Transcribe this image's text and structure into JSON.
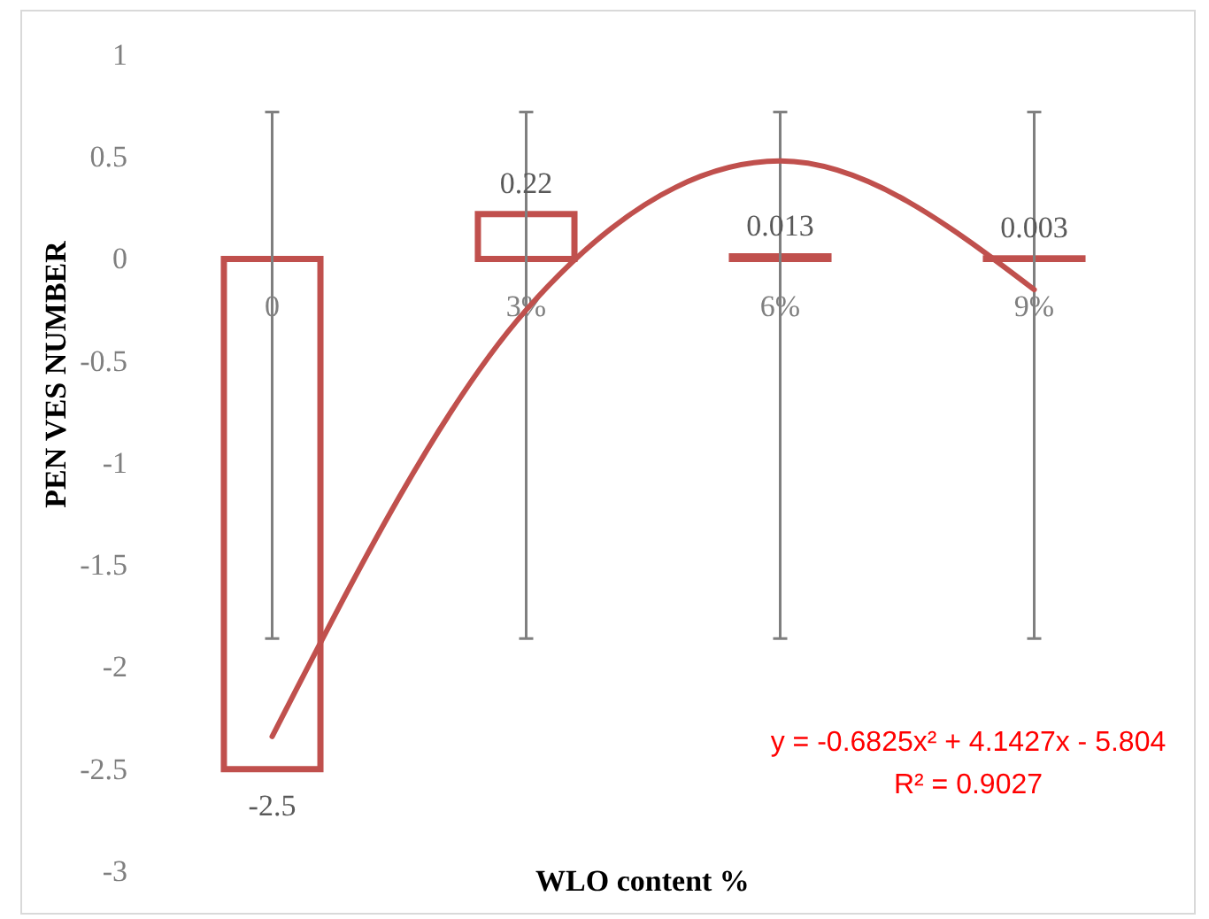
{
  "chart_data": {
    "type": "bar",
    "categories": [
      "0",
      "3%",
      "6%",
      "9%"
    ],
    "series": [
      {
        "color": "#c0504d",
        "values": [
          -2.5,
          0.22,
          0.013,
          0.003
        ],
        "value_labels": [
          "-2.5",
          "0.22",
          "0.013",
          "0.003"
        ],
        "errors": [
          [
            -1.86,
            0.72
          ],
          [
            -1.86,
            0.72
          ],
          [
            -1.86,
            0.72
          ],
          [
            -1.86,
            0.72
          ]
        ]
      },
      {
        "type": "line",
        "color": "#c0504d",
        "values": [
          -2.34,
          -0.25,
          0.48,
          -0.15
        ]
      }
    ],
    "ylabel": "PEN VES NUMBER",
    "xlabel": "WLO content %",
    "ylim": [
      -3,
      1
    ],
    "yticks": [
      -3,
      -2.5,
      -2,
      -1.5,
      -1,
      -0.5,
      0,
      0.5,
      1
    ],
    "grid": false,
    "annotations": [
      "y = -0.6825x² + 4.1427x - 5.804",
      "R² = 0.9027"
    ]
  }
}
